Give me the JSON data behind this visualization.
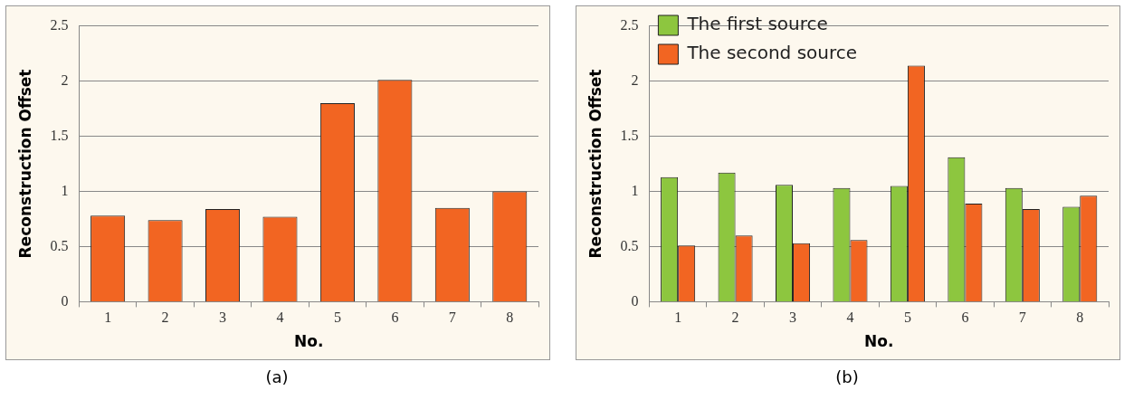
{
  "chart_data": [
    {
      "type": "bar",
      "xlabel": "No.",
      "ylabel": "Reconstruction Offset",
      "categories": [
        "1",
        "2",
        "3",
        "4",
        "5",
        "6",
        "7",
        "8"
      ],
      "series": [
        {
          "color": "#f26522",
          "values": [
            0.78,
            0.74,
            0.84,
            0.77,
            1.8,
            2.01,
            0.85,
            1.0
          ]
        }
      ],
      "ylim": [
        0,
        2.5
      ],
      "yticks": [
        0,
        0.5,
        1,
        1.5,
        2,
        2.5
      ],
      "grid": "y",
      "legend": false,
      "annotations": [
        "(a)"
      ]
    },
    {
      "type": "bar",
      "xlabel": "No.",
      "ylabel": "Reconstruction Offset",
      "categories": [
        "1",
        "2",
        "3",
        "4",
        "5",
        "6",
        "7",
        "8"
      ],
      "series": [
        {
          "name": "The first source",
          "color": "#8dc63f",
          "values": [
            1.13,
            1.17,
            1.06,
            1.03,
            1.05,
            1.31,
            1.03,
            0.86
          ]
        },
        {
          "name": "The second source",
          "color": "#f26522",
          "values": [
            0.51,
            0.6,
            0.53,
            0.56,
            2.14,
            0.89,
            0.84,
            0.96
          ]
        }
      ],
      "ylim": [
        0,
        2.5
      ],
      "yticks": [
        0,
        0.5,
        1,
        1.5,
        2,
        2.5
      ],
      "grid": "y",
      "legend": "top left",
      "annotations": [
        "(b)"
      ]
    }
  ]
}
